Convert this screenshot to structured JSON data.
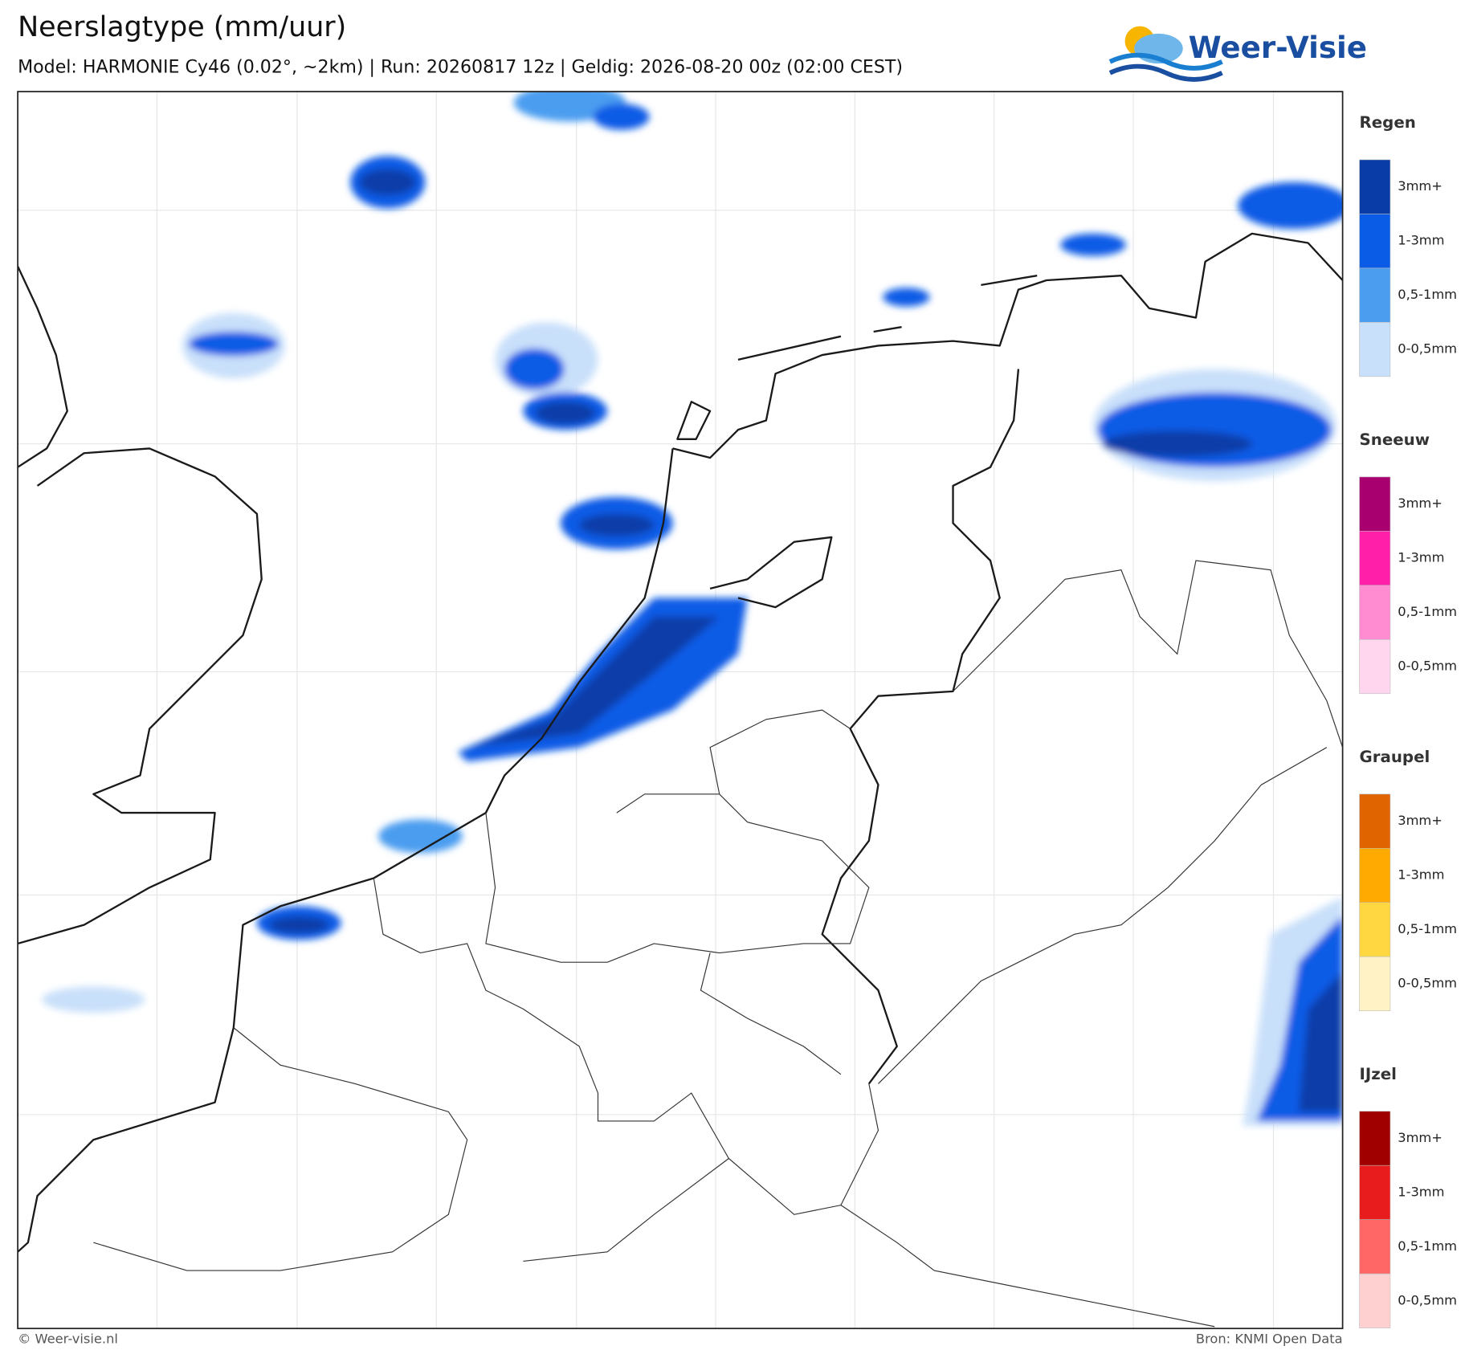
{
  "header": {
    "title": "Neerslagtype (mm/uur)",
    "subtitle": "Model: HARMONIE Cy46 (0.02°, ~2km)  |  Run: 20260817 12z  |  Geldig: 2026-08-20 00z (02:00 CEST)"
  },
  "logo": {
    "text": "Weer-Visie"
  },
  "legend": {
    "groups": [
      {
        "title": "Regen",
        "items": [
          {
            "label": "3mm+",
            "color": "#0a3ca8"
          },
          {
            "label": "1-3mm",
            "color": "#0a5ce6"
          },
          {
            "label": "0,5-1mm",
            "color": "#4b9df0"
          },
          {
            "label": "0-0,5mm",
            "color": "#c9e0fa"
          }
        ]
      },
      {
        "title": "Sneeuw",
        "items": [
          {
            "label": "3mm+",
            "color": "#a8006e"
          },
          {
            "label": "1-3mm",
            "color": "#ff1fa8"
          },
          {
            "label": "0,5-1mm",
            "color": "#ff8cd0"
          },
          {
            "label": "0-0,5mm",
            "color": "#ffd6ee"
          }
        ]
      },
      {
        "title": "Graupel",
        "items": [
          {
            "label": "3mm+",
            "color": "#e06400"
          },
          {
            "label": "1-3mm",
            "color": "#ffaa00"
          },
          {
            "label": "0,5-1mm",
            "color": "#ffd740"
          },
          {
            "label": "0-0,5mm",
            "color": "#fff2c4"
          }
        ]
      },
      {
        "title": "IJzel",
        "items": [
          {
            "label": "3mm+",
            "color": "#a00000"
          },
          {
            "label": "1-3mm",
            "color": "#e81c1c"
          },
          {
            "label": "0,5-1mm",
            "color": "#ff6666"
          },
          {
            "label": "0-0,5mm",
            "color": "#ffd0d0"
          }
        ]
      }
    ]
  },
  "footer": {
    "left": "© Weer-visie.nl",
    "right": "Bron: KNMI Open Data"
  }
}
